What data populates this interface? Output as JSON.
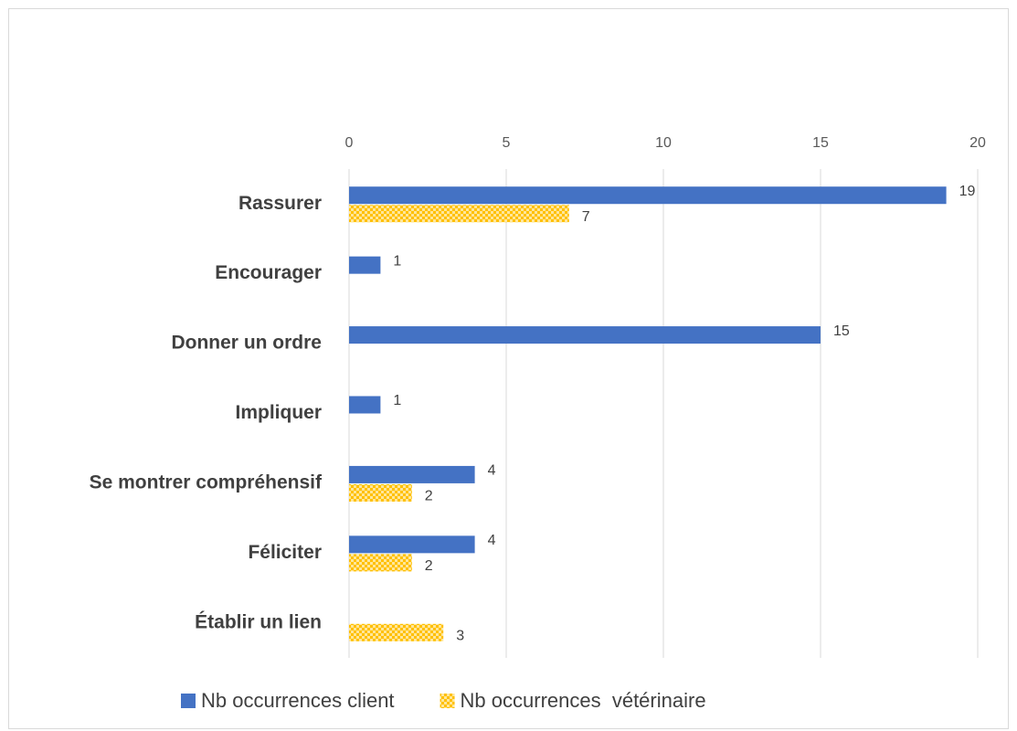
{
  "chart_data": {
    "type": "bar",
    "orientation": "horizontal",
    "categories": [
      "Rassurer",
      "Encourager",
      "Donner un ordre",
      "Impliquer",
      "Se montrer compréhensif",
      "Féliciter",
      "Établir un lien"
    ],
    "series": [
      {
        "name": "Nb occurrences client",
        "color": "#4472c4",
        "values": [
          19,
          1,
          15,
          1,
          4,
          4,
          null
        ]
      },
      {
        "name": "Nb occurrences  vétérinaire",
        "color": "#ffc000",
        "pattern": "checker",
        "values": [
          7,
          null,
          null,
          null,
          2,
          2,
          3
        ]
      }
    ],
    "xlim": [
      0,
      20
    ],
    "xticks": [
      0,
      5,
      10,
      15,
      20
    ],
    "grid": true,
    "legend": "bottom"
  }
}
